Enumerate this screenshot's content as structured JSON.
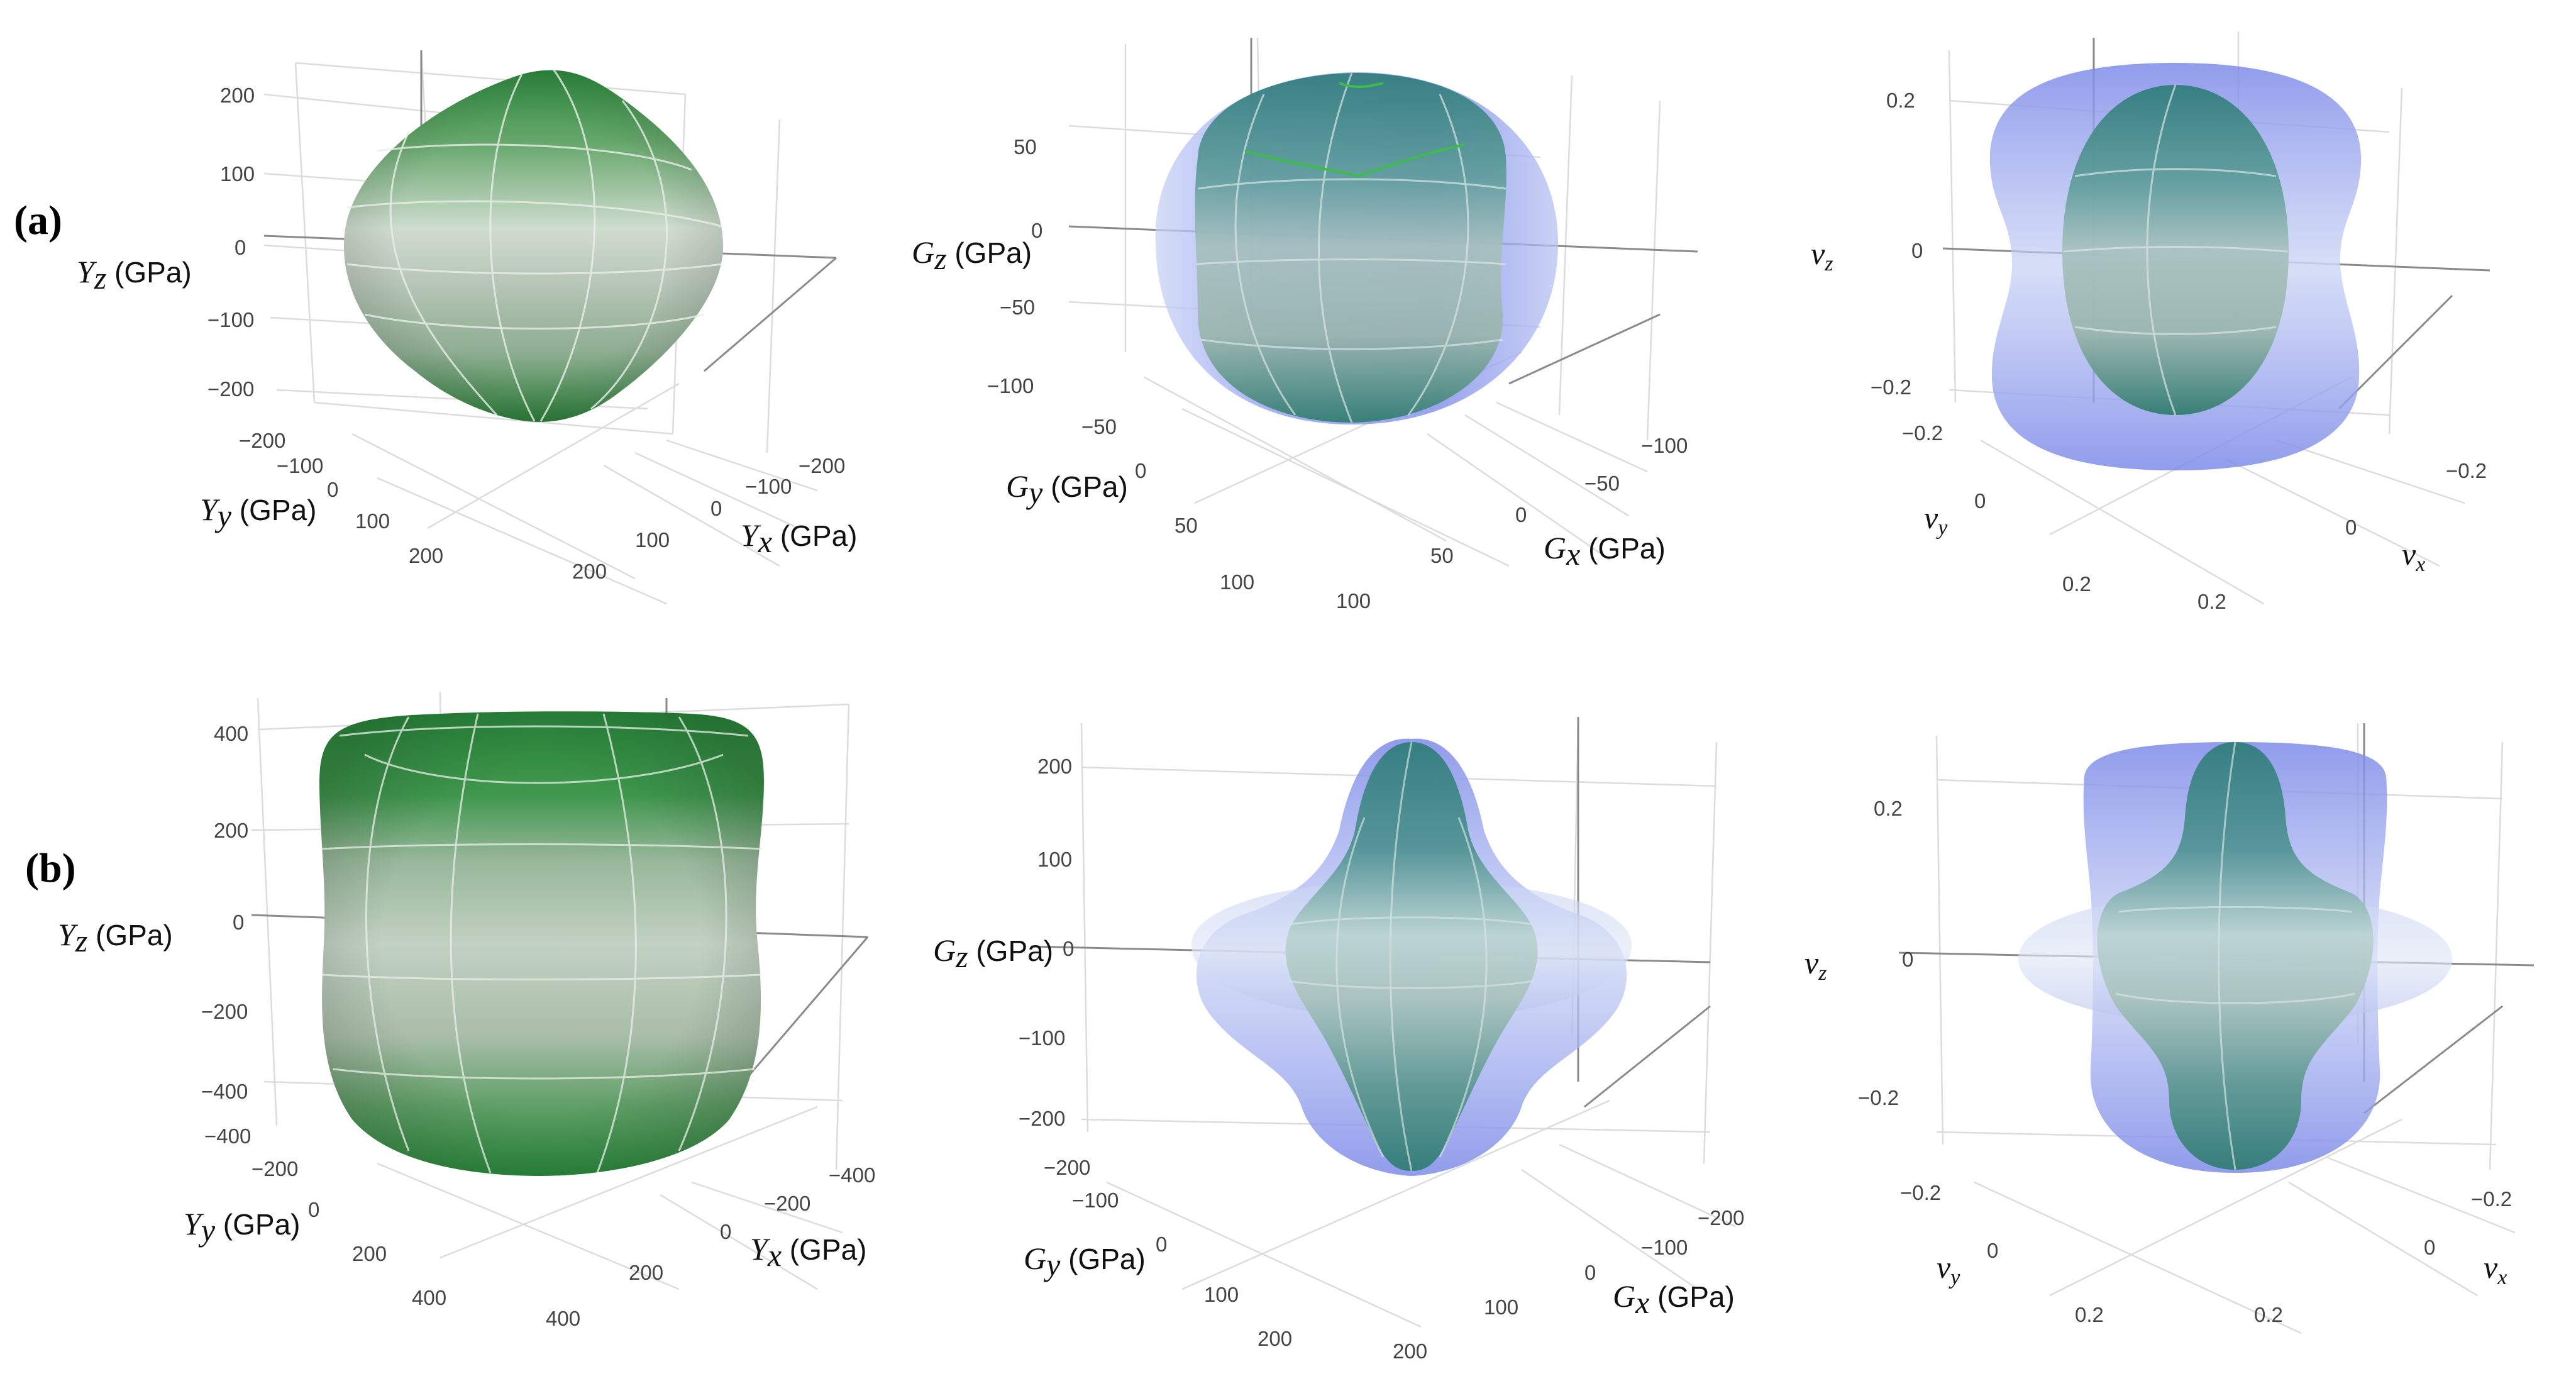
{
  "rows": [
    {
      "label": "(a)",
      "panels": [
        {
          "kind": "young",
          "z_axis": {
            "symbol": "Y",
            "sub": "z",
            "unit": " (GPa)",
            "ticks": [
              "200",
              "100",
              "0",
              "−100",
              "−200"
            ]
          },
          "y_axis": {
            "symbol": "Y",
            "sub": "y",
            "unit": " (GPa)",
            "ticks": [
              "−200",
              "−100",
              "0",
              "100",
              "200"
            ]
          },
          "x_axis": {
            "symbol": "Y",
            "sub": "x",
            "unit": " (GPa)",
            "ticks": [
              "−200",
              "−100",
              "0",
              "100",
              "200"
            ]
          }
        },
        {
          "kind": "shear",
          "z_axis": {
            "symbol": "G",
            "sub": "z",
            "unit": " (GPa)",
            "ticks": [
              "50",
              "0",
              "−50",
              "−100"
            ]
          },
          "y_axis": {
            "symbol": "G",
            "sub": "y",
            "unit": " (GPa)",
            "ticks": [
              "−50",
              "0",
              "50",
              "100"
            ]
          },
          "x_axis": {
            "symbol": "G",
            "sub": "x",
            "unit": " (GPa)",
            "ticks": [
              "−100",
              "−50",
              "0",
              "50",
              "100"
            ]
          }
        },
        {
          "kind": "poisson",
          "z_axis": {
            "symbol": "ν",
            "sub": "z",
            "unit": "",
            "ticks": [
              "0.2",
              "0",
              "−0.2"
            ]
          },
          "y_axis": {
            "symbol": "ν",
            "sub": "y",
            "unit": "",
            "ticks": [
              "−0.2",
              "0",
              "0.2"
            ]
          },
          "x_axis": {
            "symbol": "ν",
            "sub": "x",
            "unit": "",
            "ticks": [
              "−0.2",
              "0",
              "0.2"
            ]
          }
        }
      ]
    },
    {
      "label": "(b)",
      "panels": [
        {
          "kind": "young",
          "z_axis": {
            "symbol": "Y",
            "sub": "z",
            "unit": " (GPa)",
            "ticks": [
              "400",
              "200",
              "0",
              "−200",
              "−400"
            ]
          },
          "y_axis": {
            "symbol": "Y",
            "sub": "y",
            "unit": " (GPa)",
            "ticks": [
              "−400",
              "−200",
              "0",
              "200",
              "400"
            ]
          },
          "x_axis": {
            "symbol": "Y",
            "sub": "x",
            "unit": " (GPa)",
            "ticks": [
              "−400",
              "−200",
              "0",
              "200",
              "400"
            ]
          }
        },
        {
          "kind": "shear",
          "z_axis": {
            "symbol": "G",
            "sub": "z",
            "unit": " (GPa)",
            "ticks": [
              "200",
              "100",
              "0",
              "−100",
              "−200"
            ]
          },
          "y_axis": {
            "symbol": "G",
            "sub": "y",
            "unit": " (GPa)",
            "ticks": [
              "−200",
              "−100",
              "0",
              "100",
              "200"
            ]
          },
          "x_axis": {
            "symbol": "G",
            "sub": "x",
            "unit": " (GPa)",
            "ticks": [
              "−200",
              "−100",
              "0",
              "100",
              "200"
            ]
          }
        },
        {
          "kind": "poisson",
          "z_axis": {
            "symbol": "ν",
            "sub": "z",
            "unit": "",
            "ticks": [
              "0.2",
              "0",
              "−0.2"
            ]
          },
          "y_axis": {
            "symbol": "ν",
            "sub": "y",
            "unit": "",
            "ticks": [
              "−0.2",
              "0",
              "0.2"
            ]
          },
          "x_axis": {
            "symbol": "ν",
            "sub": "x",
            "unit": "",
            "ticks": [
              "−0.2",
              "0",
              "0.2"
            ]
          }
        }
      ]
    }
  ],
  "colors": {
    "young_surface": "#2e8b3e",
    "young_highlight": "#c6d8c6",
    "shear_inner": "#3f8a88",
    "shear_outer": "#7f8ff0",
    "poisson_inner": "#3f8a88",
    "poisson_outer": "#7f8ff0"
  }
}
